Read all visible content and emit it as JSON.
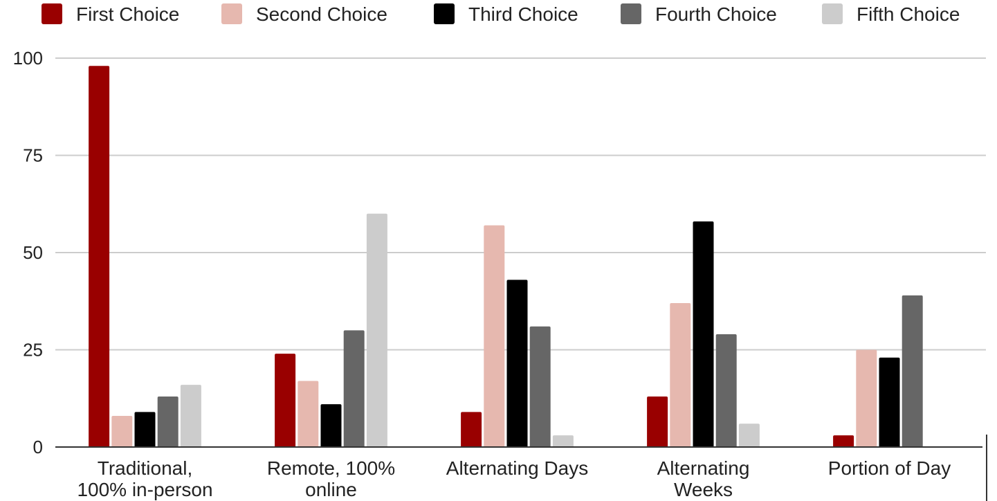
{
  "chart_data": {
    "type": "bar",
    "title": "",
    "xlabel": "",
    "ylabel": "",
    "ylim": [
      0,
      100
    ],
    "yticks": [
      0,
      25,
      50,
      75,
      100
    ],
    "grid": true,
    "legend_position": "top",
    "categories": [
      [
        "Traditional,",
        "100% in-person"
      ],
      [
        "Remote, 100%",
        "online"
      ],
      [
        "Alternating Days"
      ],
      [
        "Alternating",
        "Weeks"
      ],
      [
        "Portion of Day"
      ]
    ],
    "series": [
      {
        "name": "First Choice",
        "color": "#990000",
        "values": [
          98,
          24,
          9,
          13,
          3
        ]
      },
      {
        "name": "Second Choice",
        "color": "#e6b8af",
        "values": [
          8,
          17,
          57,
          37,
          25
        ]
      },
      {
        "name": "Third Choice",
        "color": "#000000",
        "values": [
          9,
          11,
          43,
          58,
          23
        ]
      },
      {
        "name": "Fourth Choice",
        "color": "#666666",
        "values": [
          13,
          30,
          31,
          29,
          39
        ]
      },
      {
        "name": "Fifth Choice",
        "color": "#cccccc",
        "values": [
          16,
          60,
          3,
          6,
          0
        ]
      }
    ]
  }
}
